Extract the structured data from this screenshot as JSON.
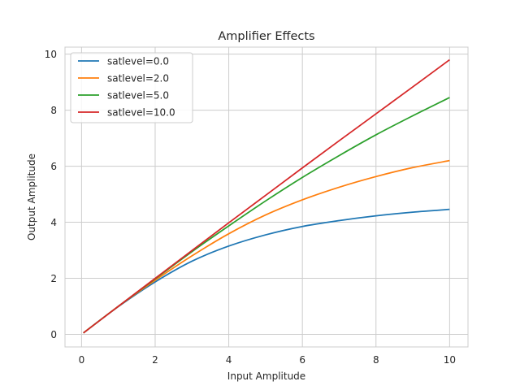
{
  "chart_data": {
    "type": "line",
    "title": "Amplifier Effects",
    "xlabel": "Input Amplitude",
    "ylabel": "Output Amplitude",
    "xlim": [
      -0.45,
      10.5
    ],
    "ylim": [
      -0.45,
      10.25
    ],
    "xticks": [
      0,
      2,
      4,
      6,
      8,
      10
    ],
    "yticks": [
      0,
      2,
      4,
      6,
      8,
      10
    ],
    "grid": true,
    "legend_position": "upper-left",
    "x": [
      0.05,
      1,
      2,
      3,
      4,
      5,
      6,
      7,
      8,
      9,
      10
    ],
    "series": [
      {
        "name": "satlevel=0.0",
        "color": "#1f77b4",
        "values": [
          0.05,
          0.99,
          1.87,
          2.61,
          3.15,
          3.55,
          3.85,
          4.06,
          4.23,
          4.36,
          4.46
        ]
      },
      {
        "name": "satlevel=2.0",
        "color": "#ff7f0e",
        "values": [
          0.05,
          1.0,
          1.93,
          2.8,
          3.59,
          4.26,
          4.8,
          5.25,
          5.63,
          5.95,
          6.2
        ]
      },
      {
        "name": "satlevel=5.0",
        "color": "#2ca02c",
        "values": [
          0.05,
          1.0,
          1.98,
          2.95,
          3.87,
          4.76,
          5.6,
          6.38,
          7.12,
          7.8,
          8.45
        ]
      },
      {
        "name": "satlevel=10.0",
        "color": "#d62728",
        "values": [
          0.05,
          1.0,
          2.0,
          2.99,
          3.98,
          4.96,
          5.94,
          6.91,
          7.87,
          8.83,
          9.8
        ]
      }
    ]
  }
}
